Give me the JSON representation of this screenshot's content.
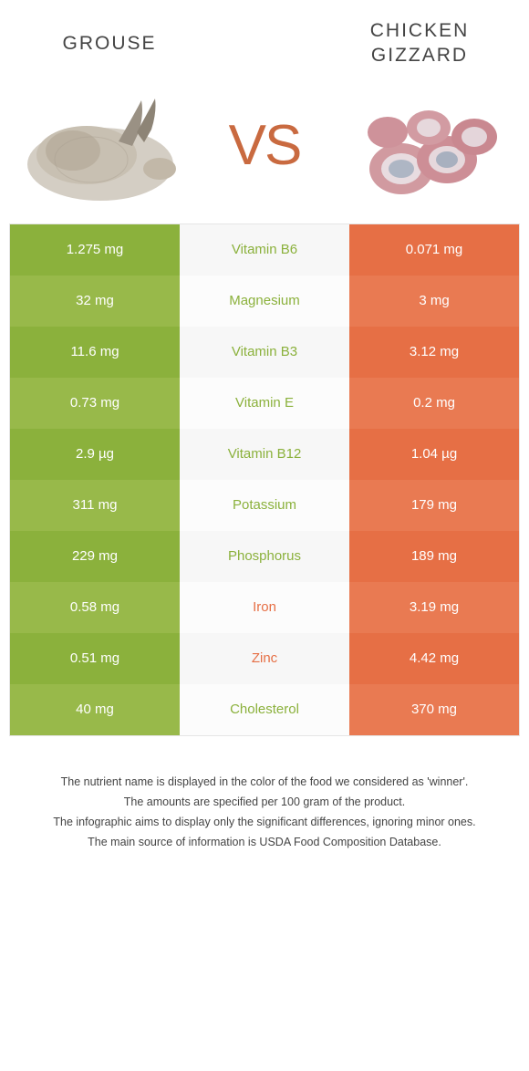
{
  "header": {
    "left_title": "GROUSE",
    "right_title": "CHICKEN GIZZARD",
    "vs_text": "VS"
  },
  "colors": {
    "green_a": "#8bb13c",
    "green_b": "#98b94a",
    "orange_a": "#e66f45",
    "orange_b": "#e97a52",
    "mid_a": "#f7f7f7",
    "mid_b": "#fcfcfc",
    "vs_color": "#c96a40",
    "text": "#333333",
    "white": "#ffffff",
    "border": "#e5e5e5"
  },
  "rows": [
    {
      "left": "1.275 mg",
      "label": "Vitamin B6",
      "right": "0.071 mg",
      "winner": "green"
    },
    {
      "left": "32 mg",
      "label": "Magnesium",
      "right": "3 mg",
      "winner": "green"
    },
    {
      "left": "11.6 mg",
      "label": "Vitamin B3",
      "right": "3.12 mg",
      "winner": "green"
    },
    {
      "left": "0.73 mg",
      "label": "Vitamin E",
      "right": "0.2 mg",
      "winner": "green"
    },
    {
      "left": "2.9 µg",
      "label": "Vitamin B12",
      "right": "1.04 µg",
      "winner": "green"
    },
    {
      "left": "311 mg",
      "label": "Potassium",
      "right": "179 mg",
      "winner": "green"
    },
    {
      "left": "229 mg",
      "label": "Phosphorus",
      "right": "189 mg",
      "winner": "green"
    },
    {
      "left": "0.58 mg",
      "label": "Iron",
      "right": "3.19 mg",
      "winner": "orange"
    },
    {
      "left": "0.51 mg",
      "label": "Zinc",
      "right": "4.42 mg",
      "winner": "orange"
    },
    {
      "left": "40 mg",
      "label": "Cholesterol",
      "right": "370 mg",
      "winner": "green"
    }
  ],
  "footer": [
    "The nutrient name is displayed in the color of the food we considered as 'winner'.",
    "The amounts are specified per 100 gram of the product.",
    "The infographic aims to display only the significant differences, ignoring minor ones.",
    "The main source of information is USDA Food Composition Database."
  ]
}
